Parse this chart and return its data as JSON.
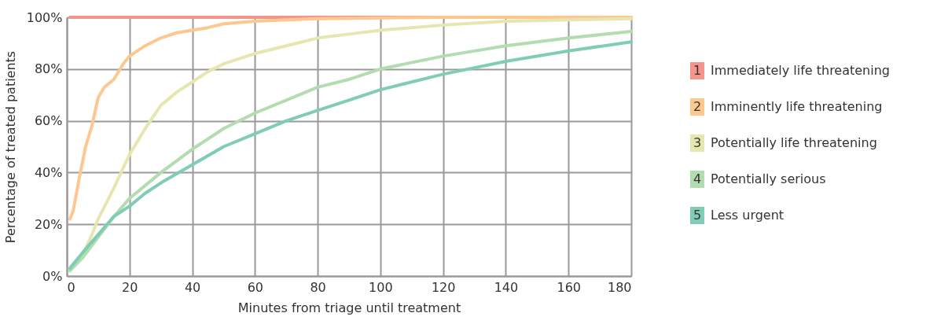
{
  "chart_data": {
    "type": "line",
    "xlabel": "Minutes from triage until treatment",
    "ylabel": "Percentage of treated patients",
    "xlim": [
      0,
      180
    ],
    "xticks": [
      0,
      20,
      40,
      60,
      80,
      100,
      120,
      140,
      160,
      180
    ],
    "ylim": [
      0,
      100
    ],
    "yticks": [
      {
        "value": 0,
        "label": "0%"
      },
      {
        "value": 20,
        "label": "20%"
      },
      {
        "value": 40,
        "label": "40%"
      },
      {
        "value": 60,
        "label": "60%"
      },
      {
        "value": 80,
        "label": "80%"
      },
      {
        "value": 100,
        "label": "100%"
      }
    ],
    "grid": true,
    "legend": "right",
    "marker": "none",
    "line_style": "solid",
    "series": [
      {
        "name": "1 Immediately life threatening",
        "color": "#f4948a",
        "x": [
          1,
          180
        ],
        "values": [
          100,
          100
        ]
      },
      {
        "name": "2 Imminently life threatening",
        "color": "#fdc88f",
        "x": [
          1,
          2,
          4,
          6,
          8,
          10,
          12,
          15,
          18,
          20,
          25,
          30,
          35,
          40,
          45,
          50,
          60,
          70,
          80,
          100,
          120,
          140,
          160,
          180
        ],
        "values": [
          22,
          25,
          38,
          50,
          58,
          69,
          73,
          76,
          82,
          85,
          89,
          92,
          94,
          95,
          96,
          97.5,
          98.5,
          99,
          99.5,
          99.8,
          100,
          100,
          100,
          100
        ]
      },
      {
        "name": "3 Potentially life threatening",
        "color": "#e6e6b0",
        "x": [
          1,
          5,
          8,
          10,
          15,
          20,
          25,
          30,
          35,
          40,
          45,
          50,
          60,
          70,
          80,
          90,
          100,
          120,
          140,
          160,
          180
        ],
        "values": [
          3,
          8,
          16,
          22,
          34,
          47,
          57,
          66,
          71,
          75,
          79,
          82,
          86,
          89,
          92,
          93.5,
          95,
          97,
          98.5,
          99,
          99.5
        ]
      },
      {
        "name": "4 Potentially serious",
        "color": "#b3dcb0",
        "x": [
          1,
          5,
          10,
          15,
          20,
          25,
          30,
          40,
          50,
          60,
          70,
          80,
          90,
          100,
          120,
          140,
          160,
          180
        ],
        "values": [
          2,
          7,
          15,
          23,
          30,
          35,
          40,
          49,
          57,
          63,
          68,
          73,
          76,
          80,
          85,
          89,
          92,
          94.5
        ]
      },
      {
        "name": "5 Less urgent",
        "color": "#7fcdb5",
        "x": [
          1,
          5,
          10,
          15,
          20,
          25,
          30,
          40,
          50,
          60,
          70,
          80,
          90,
          100,
          120,
          140,
          160,
          180
        ],
        "values": [
          3,
          9,
          16,
          23,
          27,
          32,
          36,
          43,
          50,
          55,
          60,
          64,
          68,
          72,
          78,
          83,
          87,
          90.5
        ]
      }
    ]
  }
}
